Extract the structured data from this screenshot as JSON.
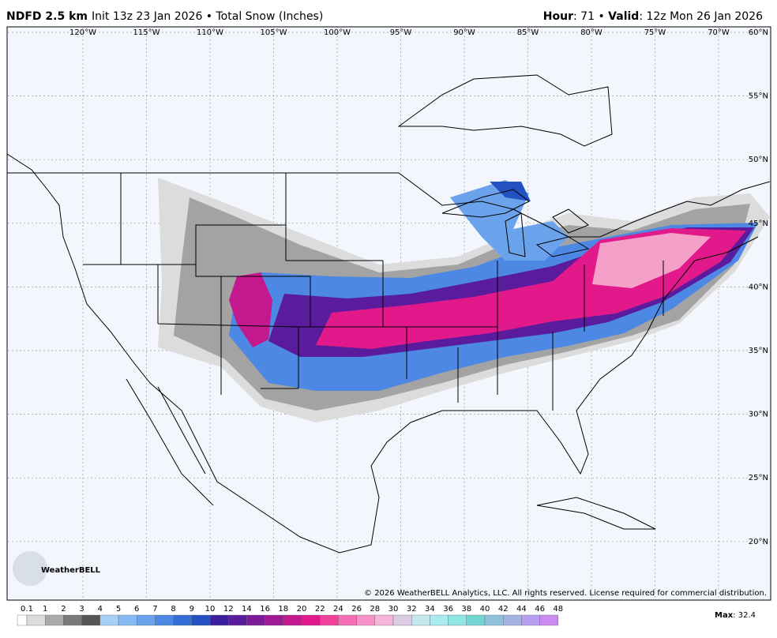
{
  "header": {
    "model": "NDFD 2.5 km",
    "subtitle": "Init 13z 23 Jan 2026 • Total Snow (Inches)",
    "hour_label": "Hour",
    "hour": "71",
    "valid_label": "Valid",
    "valid": "12z Mon 26 Jan 2026"
  },
  "map": {
    "longitude_labels": [
      "120°W",
      "115°W",
      "110°W",
      "105°W",
      "100°W",
      "95°W",
      "90°W",
      "85°W",
      "80°W",
      "75°W",
      "70°W"
    ],
    "latitude_labels": [
      "60°N",
      "55°N",
      "50°N",
      "45°N",
      "40°N",
      "35°N",
      "30°N",
      "25°N",
      "20°N"
    ],
    "logo": "WeatherBELL",
    "copyright": "© 2026 WeatherBELL Analytics, LLC. All rights reserved. License required for commercial distribution."
  },
  "legend": {
    "labels": [
      "0.1",
      "1",
      "2",
      "3",
      "4",
      "5",
      "6",
      "7",
      "8",
      "9",
      "10",
      "12",
      "14",
      "16",
      "18",
      "20",
      "22",
      "24",
      "26",
      "28",
      "30",
      "32",
      "34",
      "36",
      "38",
      "40",
      "42",
      "44",
      "46",
      "48"
    ],
    "colors": [
      "#ffffff",
      "#dcdcdc",
      "#a9a9a9",
      "#7a7a7a",
      "#555555",
      "#a8d0f7",
      "#86baf2",
      "#6aa2ec",
      "#4d88e4",
      "#356dd6",
      "#2451c2",
      "#3b1f9e",
      "#5a1b9c",
      "#7c1a9a",
      "#9e1a95",
      "#c3188e",
      "#e2198a",
      "#f2409d",
      "#f56db5",
      "#f792c8",
      "#f5b4d8",
      "#dccbe4",
      "#c4e8ee",
      "#a8ecf2",
      "#8ee6e6",
      "#74d6d2",
      "#8fc2da",
      "#a5b2e6",
      "#b89ff0",
      "#c98af2"
    ],
    "max_label": "Max",
    "max": "32.4"
  }
}
